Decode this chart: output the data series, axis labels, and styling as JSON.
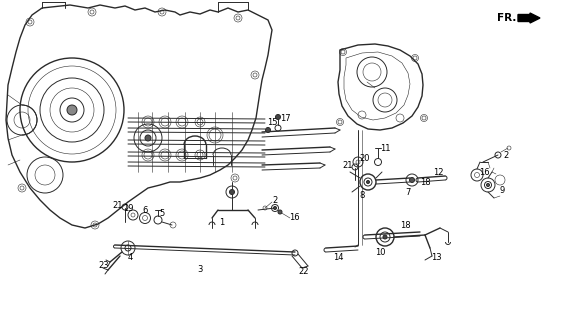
{
  "background_color": "#ffffff",
  "fig_width": 5.68,
  "fig_height": 3.2,
  "dpi": 100,
  "line_color": "#2a2a2a",
  "text_color": "#000000",
  "label_fontsize": 6.0
}
